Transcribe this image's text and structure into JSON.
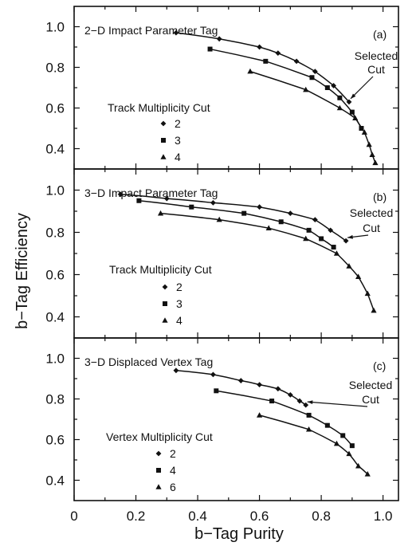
{
  "figure": {
    "xlabel": "b−Tag Purity",
    "ylabel": "b−Tag Efficiency",
    "x_tick_labels": [
      "0",
      "0.2",
      "0.4",
      "0.6",
      "0.8",
      "1.0"
    ],
    "y_tick_labels": [
      "0.4",
      "0.6",
      "0.8",
      "1.0"
    ]
  },
  "chart_data": [
    {
      "type": "line",
      "panel_title": "2−D Impact Parameter Tag",
      "panel_tag": "(a)",
      "annotation": [
        "Selected",
        "Cut"
      ],
      "legend_title": "Track Multiplicity Cut",
      "xlim": [
        0,
        1.05
      ],
      "ylim": [
        0.3,
        1.1
      ],
      "series": [
        {
          "name": "2",
          "marker": "diamond",
          "x": [
            0.33,
            0.47,
            0.6,
            0.66,
            0.72,
            0.78,
            0.84,
            0.89
          ],
          "y": [
            0.97,
            0.94,
            0.9,
            0.87,
            0.83,
            0.78,
            0.71,
            0.63
          ]
        },
        {
          "name": "3",
          "marker": "square",
          "x": [
            0.44,
            0.62,
            0.77,
            0.82,
            0.86,
            0.9,
            0.93
          ],
          "y": [
            0.89,
            0.83,
            0.75,
            0.7,
            0.65,
            0.58,
            0.5
          ]
        },
        {
          "name": "4",
          "marker": "triangle",
          "x": [
            0.57,
            0.75,
            0.86,
            0.91,
            0.94,
            0.955,
            0.965,
            0.975
          ],
          "y": [
            0.78,
            0.69,
            0.6,
            0.55,
            0.48,
            0.42,
            0.37,
            0.33
          ]
        }
      ]
    },
    {
      "type": "line",
      "panel_title": "3−D Impact Parameter Tag",
      "panel_tag": "(b)",
      "annotation": [
        "Selected",
        "Cut"
      ],
      "legend_title": "Track Multiplicity Cut",
      "xlim": [
        0,
        1.05
      ],
      "ylim": [
        0.3,
        1.1
      ],
      "series": [
        {
          "name": "2",
          "marker": "diamond",
          "x": [
            0.15,
            0.3,
            0.45,
            0.6,
            0.7,
            0.78,
            0.83,
            0.88
          ],
          "y": [
            0.98,
            0.96,
            0.94,
            0.92,
            0.89,
            0.86,
            0.81,
            0.76
          ]
        },
        {
          "name": "3",
          "marker": "square",
          "x": [
            0.21,
            0.38,
            0.55,
            0.67,
            0.76,
            0.8,
            0.84
          ],
          "y": [
            0.95,
            0.92,
            0.89,
            0.85,
            0.81,
            0.77,
            0.73
          ]
        },
        {
          "name": "4",
          "marker": "triangle",
          "x": [
            0.28,
            0.47,
            0.63,
            0.75,
            0.85,
            0.89,
            0.92,
            0.95,
            0.97
          ],
          "y": [
            0.89,
            0.86,
            0.82,
            0.77,
            0.7,
            0.64,
            0.59,
            0.51,
            0.43
          ]
        }
      ]
    },
    {
      "type": "line",
      "panel_title": "3−D Displaced Vertex Tag",
      "panel_tag": "(c)",
      "annotation": [
        "Selected",
        "Cut"
      ],
      "legend_title": "Vertex Multiplicity Cut",
      "xlim": [
        0,
        1.05
      ],
      "ylim": [
        0.3,
        1.1
      ],
      "series": [
        {
          "name": "2",
          "marker": "diamond",
          "x": [
            0.33,
            0.45,
            0.54,
            0.6,
            0.66,
            0.7,
            0.73,
            0.75
          ],
          "y": [
            0.94,
            0.92,
            0.89,
            0.87,
            0.85,
            0.82,
            0.79,
            0.77
          ]
        },
        {
          "name": "4",
          "marker": "square",
          "x": [
            0.46,
            0.64,
            0.76,
            0.82,
            0.87,
            0.9
          ],
          "y": [
            0.84,
            0.79,
            0.72,
            0.67,
            0.62,
            0.57
          ]
        },
        {
          "name": "6",
          "marker": "triangle",
          "x": [
            0.6,
            0.76,
            0.85,
            0.89,
            0.92,
            0.95
          ],
          "y": [
            0.72,
            0.65,
            0.58,
            0.53,
            0.47,
            0.43
          ]
        }
      ]
    }
  ]
}
